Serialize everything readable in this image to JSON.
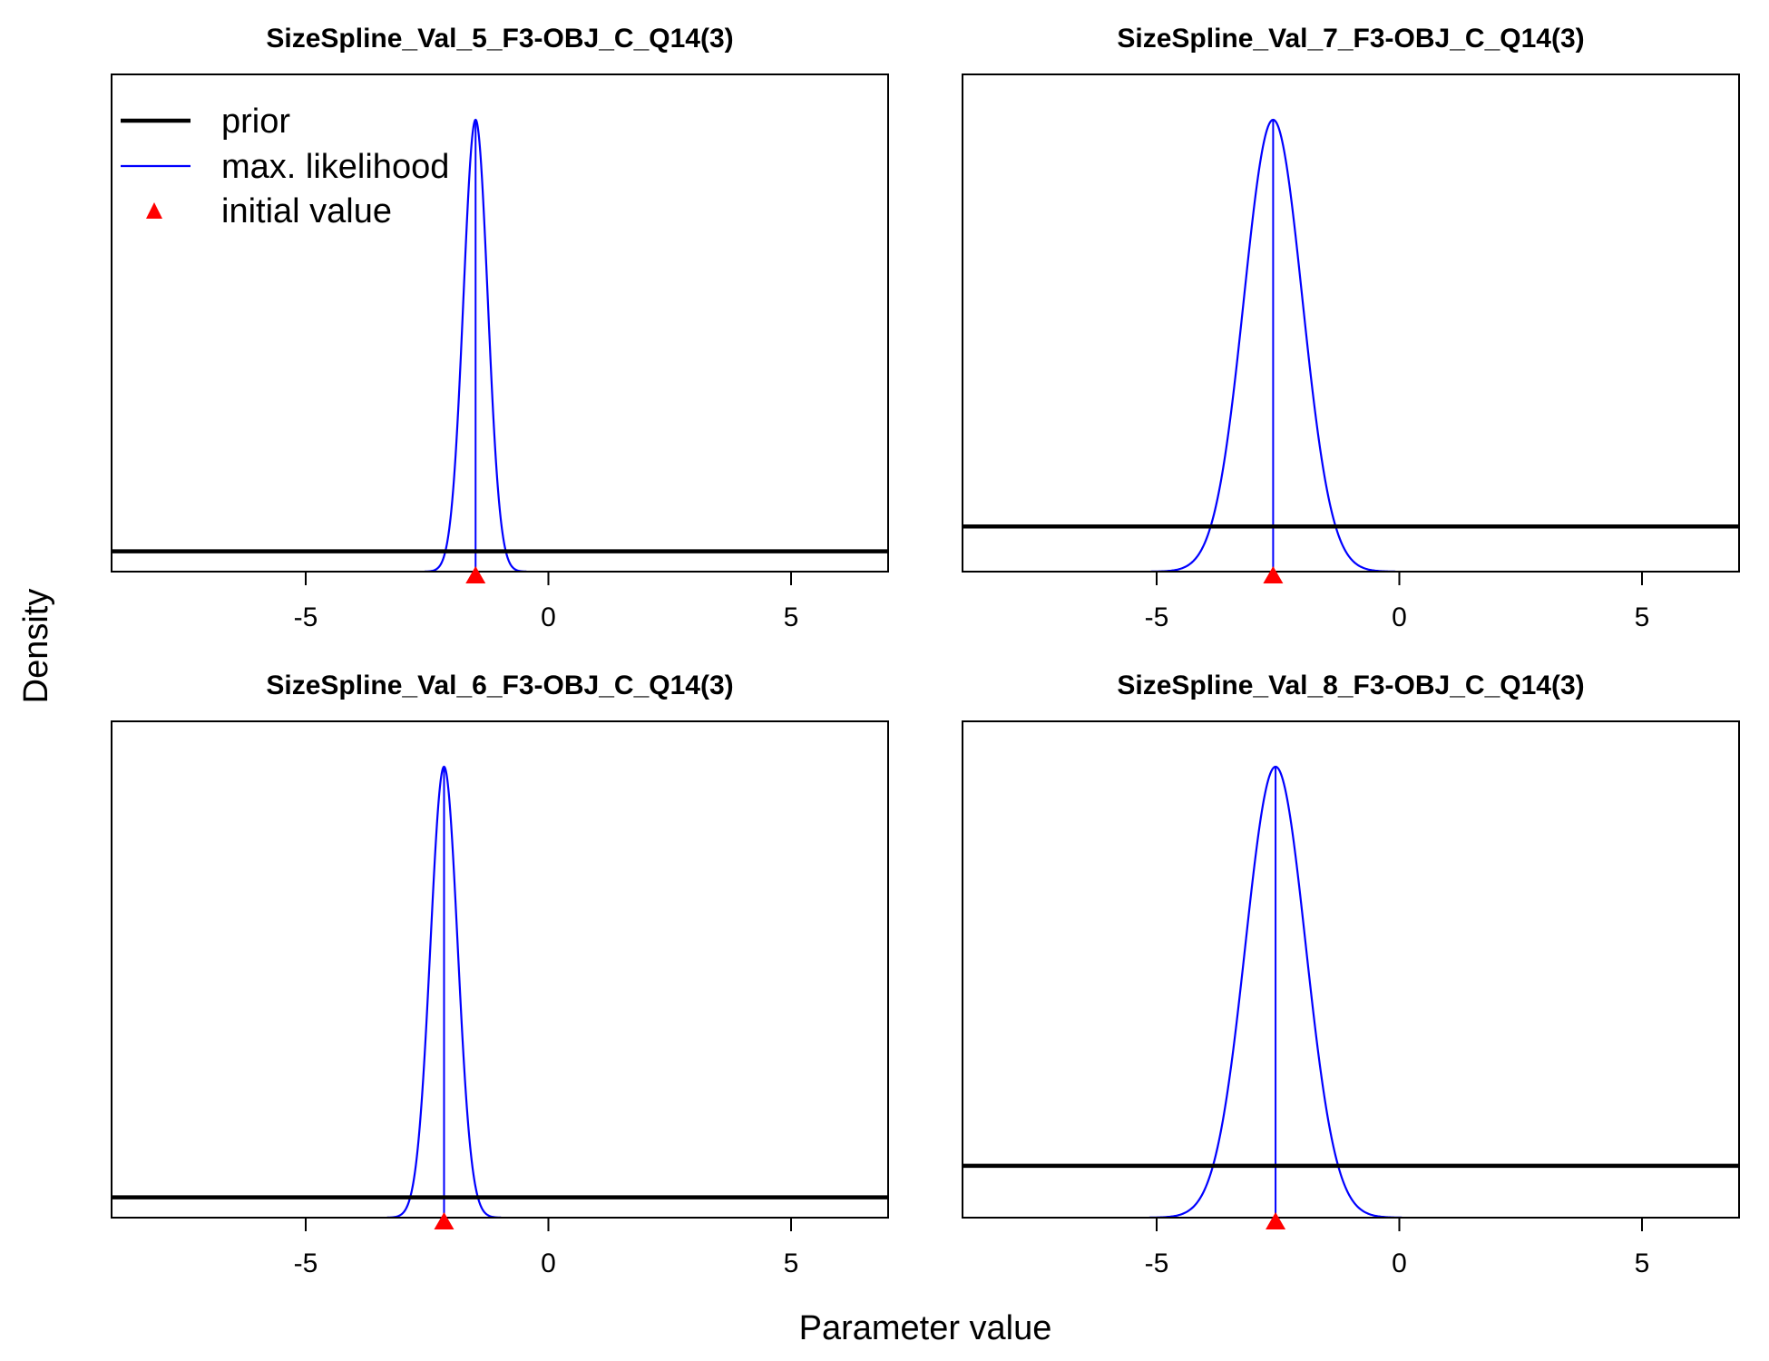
{
  "figure": {
    "xlabel": "Parameter value",
    "ylabel": "Density",
    "legend": {
      "placement": "top-left of first panel",
      "items": [
        {
          "label": "prior",
          "kind": "line",
          "color": "#000000"
        },
        {
          "label": "max. likelihood",
          "kind": "line",
          "color": "#0000ff"
        },
        {
          "label": "initial value",
          "kind": "triangle",
          "color": "#ff0000"
        }
      ]
    }
  },
  "chart_data": [
    {
      "type": "line",
      "title": "SizeSpline_Val_5_F3-OBJ_C_Q14(3)",
      "xlim": [
        -9,
        7
      ],
      "xticks": [
        -5,
        0,
        5
      ],
      "tick_labels": [
        "-5",
        "0",
        "5"
      ],
      "mle": {
        "mean": -1.5,
        "sd": 0.25
      },
      "prior_level": 0.045,
      "initial_value": -1.5
    },
    {
      "type": "line",
      "title": "SizeSpline_Val_7_F3-OBJ_C_Q14(3)",
      "xlim": [
        -9,
        7
      ],
      "xticks": [
        -5,
        0,
        5
      ],
      "tick_labels": [
        "-5",
        "0",
        "5"
      ],
      "mle": {
        "mean": -2.6,
        "sd": 0.6
      },
      "prior_level": 0.1,
      "initial_value": -2.6
    },
    {
      "type": "line",
      "title": "SizeSpline_Val_6_F3-OBJ_C_Q14(3)",
      "xlim": [
        -9,
        7
      ],
      "xticks": [
        -5,
        0,
        5
      ],
      "tick_labels": [
        "-5",
        "0",
        "5"
      ],
      "mle": {
        "mean": -2.15,
        "sd": 0.28
      },
      "prior_level": 0.045,
      "initial_value": -2.15
    },
    {
      "type": "line",
      "title": "SizeSpline_Val_8_F3-OBJ_C_Q14(3)",
      "xlim": [
        -9,
        7
      ],
      "xticks": [
        -5,
        0,
        5
      ],
      "tick_labels": [
        "-5",
        "0",
        "5"
      ],
      "mle": {
        "mean": -2.55,
        "sd": 0.62
      },
      "prior_level": 0.115,
      "initial_value": -2.55
    }
  ]
}
